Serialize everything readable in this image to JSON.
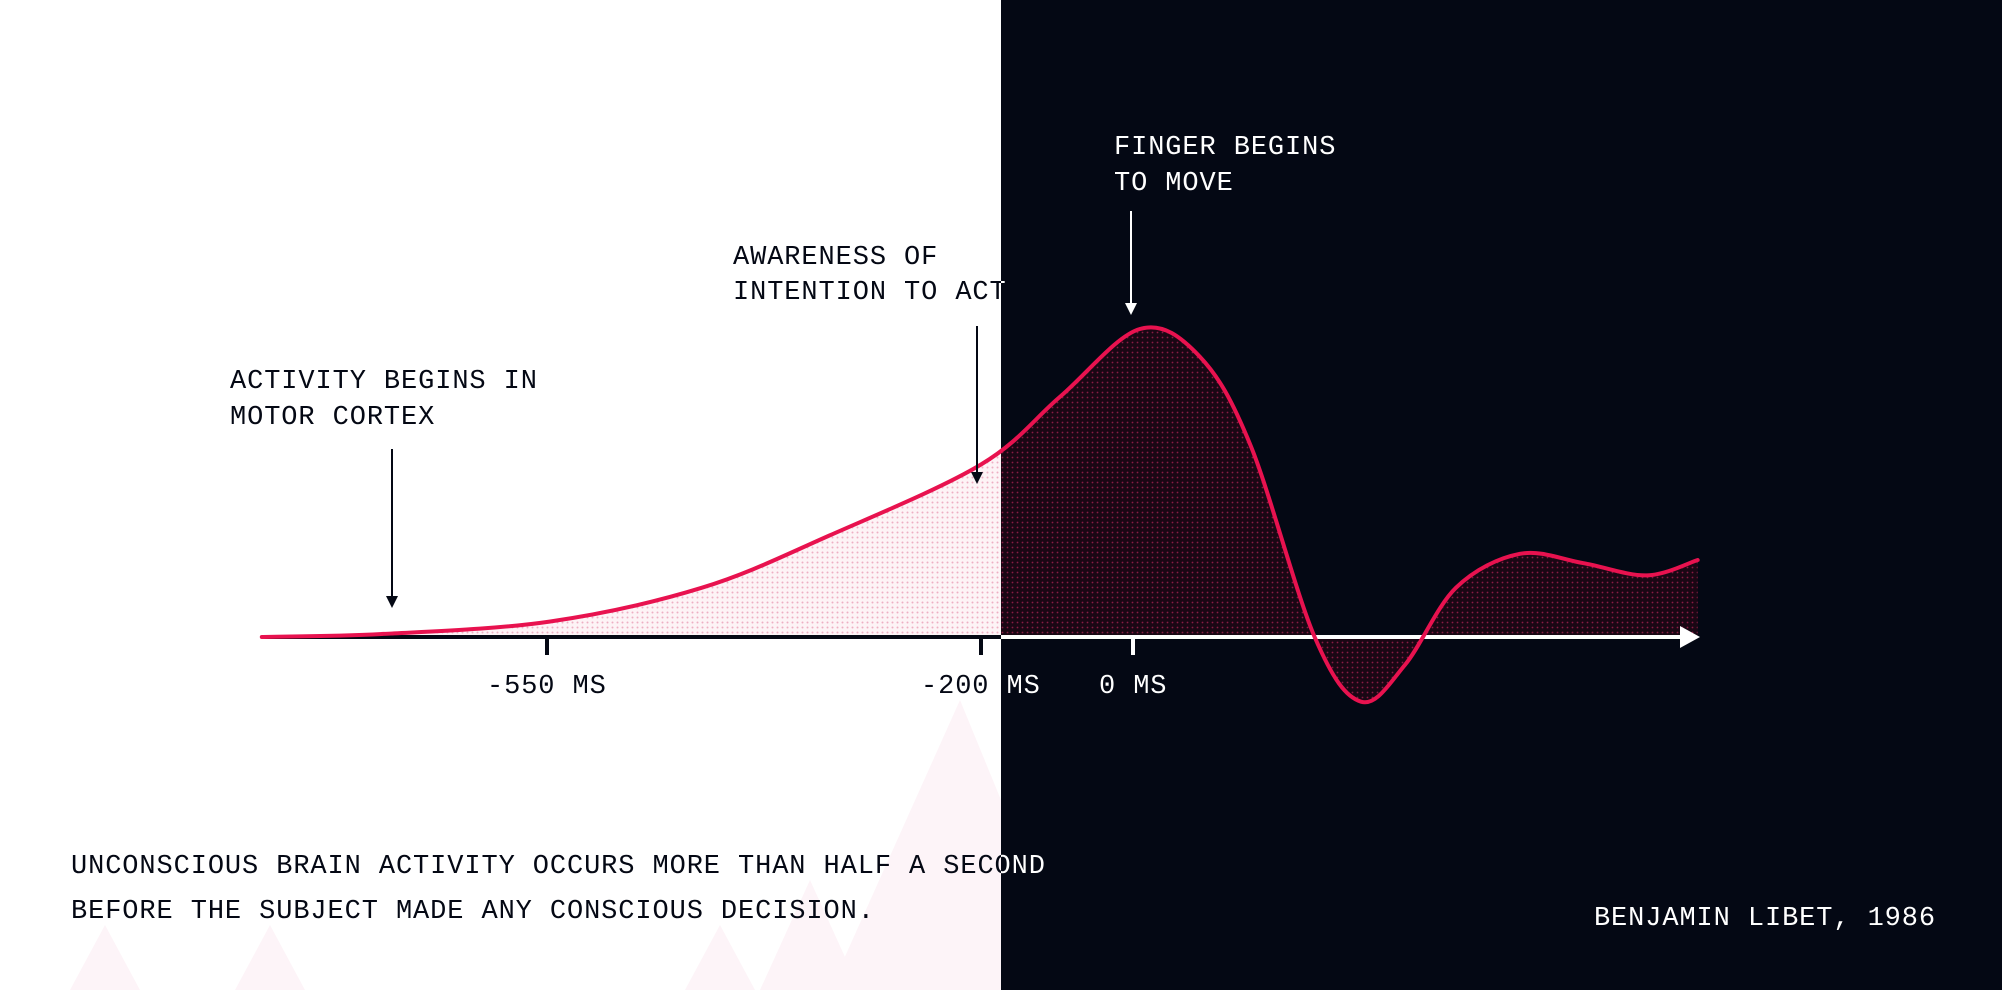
{
  "colors": {
    "background_left": "#ffffff",
    "background_right": "#040814",
    "curve": "#e8124f",
    "fill_left": "#f7d3df",
    "fill_right": "#5a0f2c"
  },
  "annotations": {
    "motor_cortex": [
      "ACTIVITY BEGINS IN",
      "MOTOR CORTEX"
    ],
    "awareness": [
      "AWARENESS OF",
      "INTENTION TO ACT"
    ],
    "finger": [
      "FINGER BEGINS",
      "TO MOVE"
    ]
  },
  "caption": [
    "UNCONSCIOUS BRAIN ACTIVITY OCCURS MORE THAN HALF A SECOND",
    "BEFORE THE SUBJECT MADE ANY CONSCIOUS DECISION."
  ],
  "credit": "BENJAMIN LIBET, 1986",
  "chart_data": {
    "type": "area",
    "title": "",
    "xlabel": "",
    "ylabel": "",
    "x_unit": "ms",
    "ticks": [
      {
        "value": -550,
        "label": "-550 MS"
      },
      {
        "value": -200,
        "label": "-200 MS"
      },
      {
        "value": 0,
        "label": "0 MS"
      }
    ],
    "x": [
      -780,
      -682,
      -548,
      -425,
      -322,
      -200,
      -96,
      9,
      88,
      155,
      239,
      300,
      358,
      425,
      509,
      592,
      676,
      743
    ],
    "y": [
      0,
      1,
      5,
      16,
      33,
      56,
      78,
      100,
      91,
      62,
      0,
      -21,
      -9,
      16,
      27,
      24,
      20,
      25
    ],
    "xlim": [
      -780,
      743
    ],
    "grid": false,
    "legend": "none"
  }
}
